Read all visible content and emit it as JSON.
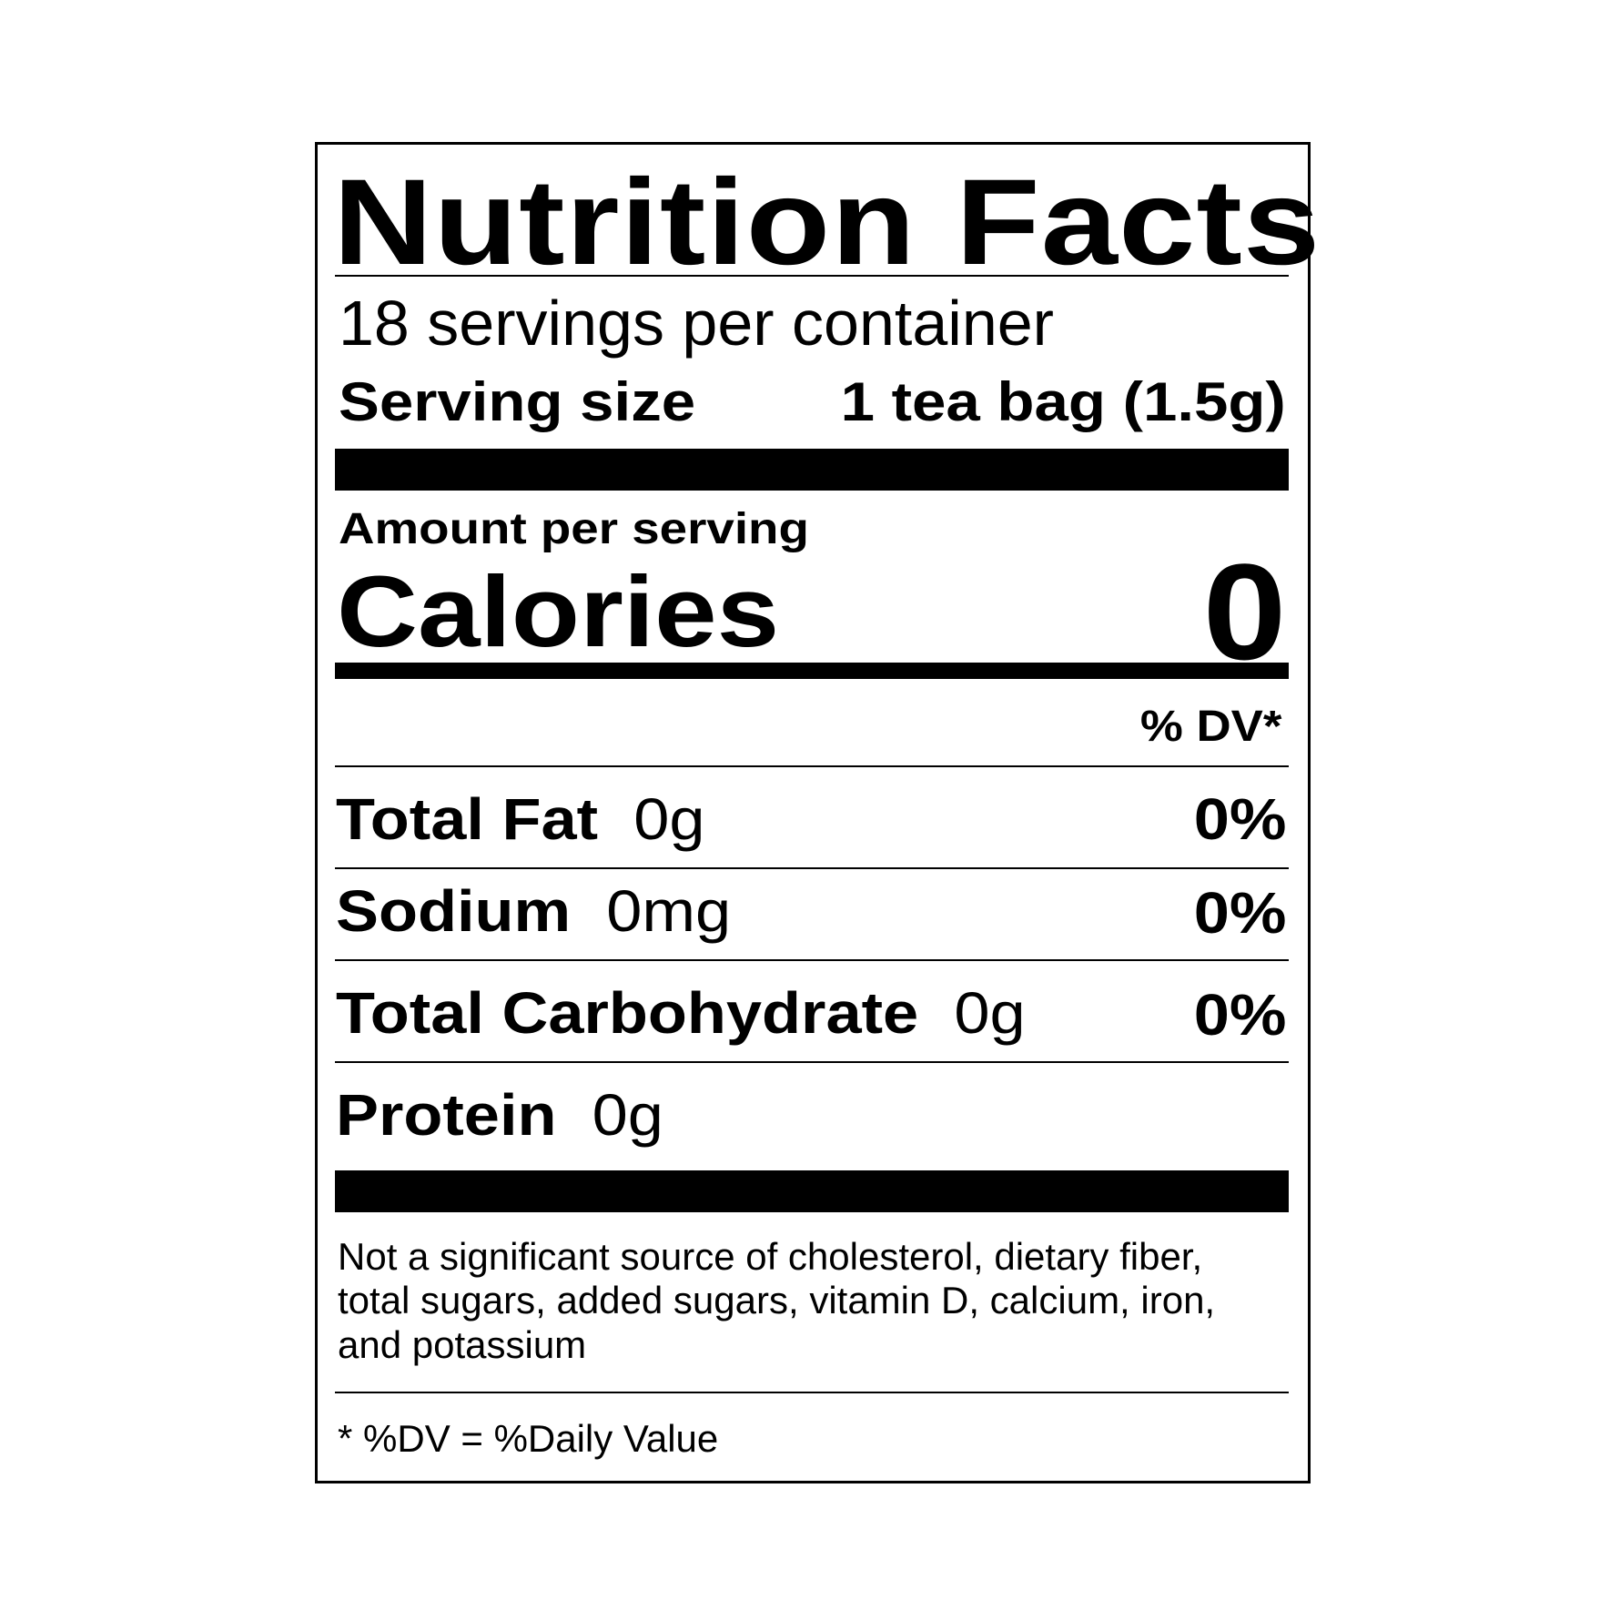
{
  "label": {
    "title": "Nutrition Facts",
    "servings_per_container": "18 servings per container",
    "serving_size_label": "Serving size",
    "serving_size_value": "1 tea bag (1.5g)",
    "amount_per_serving": "Amount per serving",
    "calories_label": "Calories",
    "calories_value": "0",
    "dv_header": "% DV*",
    "nutrients": [
      {
        "name": "Total Fat",
        "amount": "0g",
        "dv": "0%"
      },
      {
        "name": "Sodium",
        "amount": "0mg",
        "dv": "0%"
      },
      {
        "name": "Total Carbohydrate",
        "amount": "0g",
        "dv": "0%"
      },
      {
        "name": "Protein",
        "amount": "0g",
        "dv": ""
      }
    ],
    "footnote": [
      "Not a significant source of cholesterol, dietary fiber,",
      "total sugars, added sugars, vitamin D, calcium, iron,",
      "and potassium"
    ],
    "dv_note": "* %DV = %Daily Value"
  }
}
